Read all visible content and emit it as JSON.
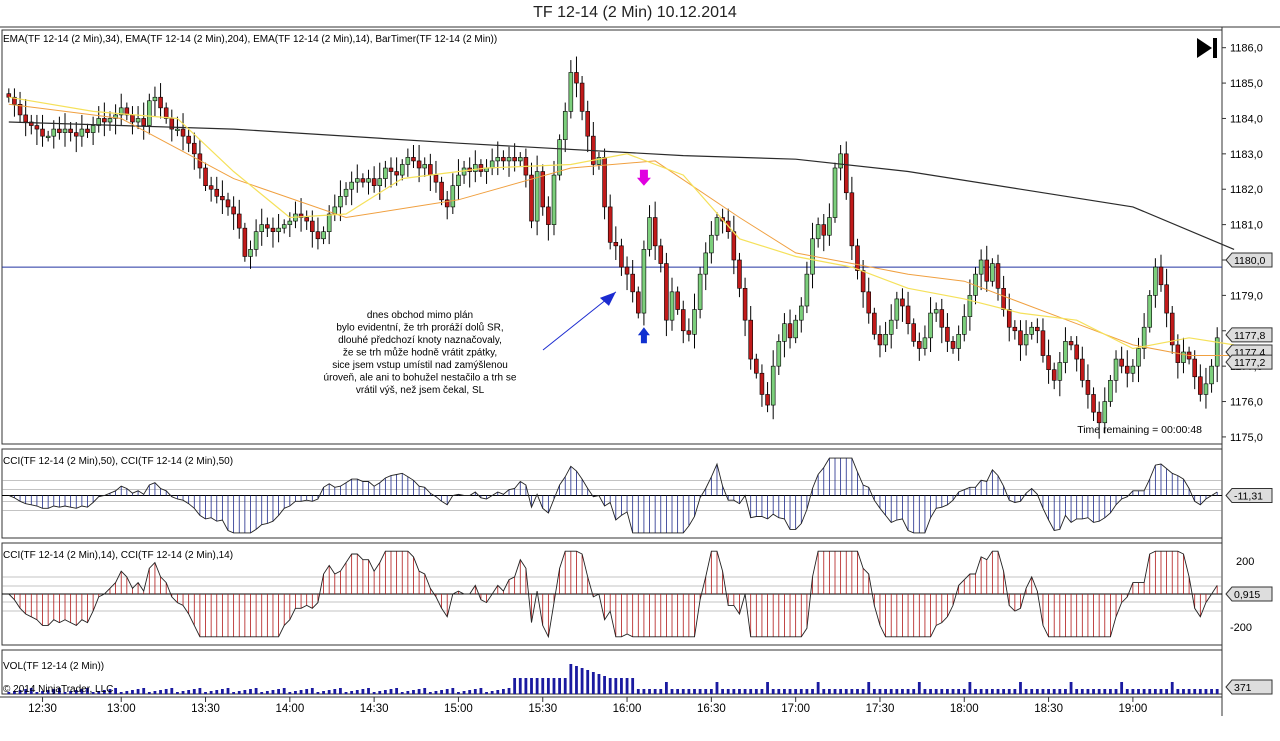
{
  "title": "TF 12-14 (2 Min)  10.12.2014",
  "colors": {
    "up": "#7ccf7c",
    "down": "#c11a1a",
    "ema34": "#f0a040",
    "ema204": "#2b2b2b",
    "ema14": "#f5e15a",
    "cci50": "#1e2a8a",
    "cci14": "#b01818",
    "vol": "#1a1aa0",
    "refline": "#2233a0"
  },
  "icons": {
    "play": "skip-forward-icon"
  },
  "chart_data": [
    {
      "type": "candlestick",
      "title": "EMA(TF 12-14 (2 Min),34), EMA(TF 12-14 (2 Min),204), EMA(TF 12-14 (2 Min),14), BarTimer(TF 12-14 (2 Min))",
      "ylim": [
        1174.8,
        1186.5
      ],
      "yticks": [
        "1175,0",
        "1176,0",
        "1177,0",
        "1178,0",
        "1179,0",
        "1180,0",
        "1181,0",
        "1182,0",
        "1183,0",
        "1184,0",
        "1185,0",
        "1186,0"
      ],
      "price_labels": [
        "1180,0",
        "1177,8",
        "1177,4",
        "1177,2"
      ],
      "horizontal_line": 1179.8,
      "bar_timer": "Time remaining = 00:00:48",
      "annotation": [
        "dnes obchod mimo plán",
        "bylo evidentní, že trh proráží dolů SR,",
        "dlouhé předchozí knoty naznačovaly,",
        "že se trh může hodně vrátit zpátky,",
        "sice jsem vstup umístil nad zamýšlenou",
        "úroveň, ale ani to bohužel nestačilo a trh se",
        "vrátil výš, než jsem čekal, SL"
      ],
      "ema204": [
        [
          0,
          1183.9
        ],
        [
          40,
          1183.7
        ],
        [
          80,
          1183.3
        ],
        [
          120,
          1182.95
        ],
        [
          140,
          1182.85
        ],
        [
          160,
          1182.5
        ],
        [
          180,
          1182.0
        ],
        [
          200,
          1181.5
        ],
        [
          218,
          1180.3
        ]
      ],
      "ema34": [
        [
          0,
          1184.4
        ],
        [
          20,
          1184.0
        ],
        [
          40,
          1182.3
        ],
        [
          60,
          1181.2
        ],
        [
          80,
          1181.7
        ],
        [
          100,
          1182.6
        ],
        [
          115,
          1182.8
        ],
        [
          130,
          1181.2
        ],
        [
          140,
          1180.2
        ],
        [
          150,
          1179.9
        ],
        [
          160,
          1179.6
        ],
        [
          170,
          1179.4
        ],
        [
          180,
          1178.8
        ],
        [
          190,
          1178.2
        ],
        [
          200,
          1177.6
        ],
        [
          210,
          1177.3
        ],
        [
          218,
          1177.3
        ]
      ],
      "ema14": [
        [
          0,
          1184.6
        ],
        [
          15,
          1184.2
        ],
        [
          30,
          1184.0
        ],
        [
          40,
          1182.5
        ],
        [
          50,
          1181.2
        ],
        [
          60,
          1181.3
        ],
        [
          70,
          1182.3
        ],
        [
          85,
          1182.6
        ],
        [
          100,
          1182.7
        ],
        [
          110,
          1183.0
        ],
        [
          120,
          1182.4
        ],
        [
          130,
          1180.6
        ],
        [
          140,
          1180.1
        ],
        [
          150,
          1179.8
        ],
        [
          160,
          1179.2
        ],
        [
          170,
          1178.9
        ],
        [
          180,
          1178.5
        ],
        [
          190,
          1178.3
        ],
        [
          200,
          1177.5
        ],
        [
          210,
          1177.8
        ],
        [
          218,
          1177.6
        ]
      ],
      "signals": [
        {
          "bar": 113,
          "type": "short-arrow",
          "price": 1182.1
        },
        {
          "bar": 113,
          "type": "cover-arrow",
          "price": 1178.1
        }
      ]
    },
    {
      "type": "histogram",
      "title": "CCI(TF 12-14 (2 Min),50), CCI(TF 12-14 (2 Min),50)",
      "last_value": "-11,31"
    },
    {
      "type": "histogram",
      "title": "CCI(TF 12-14 (2 Min),14), CCI(TF 12-14 (2 Min),14)",
      "yticks": [
        "200",
        "-200"
      ],
      "last_value": "0,915"
    },
    {
      "type": "bar",
      "title": "VOL(TF 12-14 (2 Min))",
      "last_value": "371",
      "copyright": "© 2014 NinjaTrader, LLC"
    }
  ],
  "xaxis": {
    "ticks": [
      "12:30",
      "13:00",
      "13:30",
      "14:00",
      "14:30",
      "15:00",
      "15:30",
      "16:00",
      "16:30",
      "17:00",
      "17:30",
      "18:00",
      "18:30",
      "19:00"
    ],
    "tick_bars": [
      6,
      20,
      35,
      50,
      65,
      80,
      95,
      110,
      125,
      140,
      155,
      170,
      185,
      200
    ]
  },
  "close_path": [
    1184.6,
    1184.4,
    1184.1,
    1183.9,
    1183.8,
    1183.7,
    1183.5,
    1183.5,
    1183.7,
    1183.6,
    1183.7,
    1183.6,
    1183.5,
    1183.7,
    1183.6,
    1183.8,
    1184.0,
    1183.9,
    1184.0,
    1184.1,
    1184.3,
    1184.1,
    1183.9,
    1184.0,
    1183.8,
    1184.5,
    1184.6,
    1184.3,
    1184.0,
    1183.7,
    1183.7,
    1183.5,
    1183.3,
    1183.0,
    1182.6,
    1182.1,
    1182.0,
    1181.8,
    1181.7,
    1181.5,
    1181.3,
    1180.9,
    1180.1,
    1180.3,
    1180.8,
    1181.0,
    1180.9,
    1180.8,
    1180.9,
    1181.0,
    1181.1,
    1181.3,
    1181.2,
    1181.1,
    1180.8,
    1180.6,
    1180.8,
    1181.3,
    1181.5,
    1181.8,
    1182.0,
    1182.2,
    1182.3,
    1182.2,
    1182.3,
    1182.1,
    1182.3,
    1182.6,
    1182.5,
    1182.4,
    1182.7,
    1182.9,
    1182.8,
    1182.6,
    1182.7,
    1182.4,
    1182.2,
    1181.7,
    1181.5,
    1182.1,
    1182.4,
    1182.6,
    1182.5,
    1182.7,
    1182.5,
    1182.6,
    1182.8,
    1182.9,
    1182.8,
    1182.9,
    1182.8,
    1182.9,
    1182.4,
    1181.1,
    1182.5,
    1181.5,
    1181.0,
    1182.4,
    1183.4,
    1184.2,
    1185.3,
    1185.0,
    1184.2,
    1183.5,
    1182.7,
    1182.9,
    1181.5,
    1180.5,
    1180.4,
    1179.8,
    1179.6,
    1179.1,
    1178.5,
    1180.3,
    1181.2,
    1180.4,
    1179.9,
    1178.3,
    1179.1,
    1178.6,
    1178.0,
    1177.9,
    1178.6,
    1179.6,
    1180.2,
    1180.7,
    1181.2,
    1181.1,
    1180.8,
    1180.0,
    1179.2,
    1178.3,
    1177.2,
    1176.8,
    1176.2,
    1175.9,
    1177.0,
    1177.7,
    1178.2,
    1177.8,
    1178.3,
    1178.7,
    1179.6,
    1180.6,
    1181.0,
    1180.7,
    1181.2,
    1182.6,
    1183.0,
    1181.9,
    1180.4,
    1179.7,
    1179.1,
    1178.5,
    1177.9,
    1177.6,
    1177.9,
    1178.3,
    1178.9,
    1178.7,
    1178.2,
    1177.7,
    1177.5,
    1177.8,
    1178.5,
    1178.6,
    1178.1,
    1177.7,
    1177.5,
    1177.9,
    1178.4,
    1179.0,
    1179.6,
    1180.0,
    1179.4,
    1179.9,
    1179.2,
    1178.6,
    1178.1,
    1178.0,
    1177.6,
    1177.9,
    1178.1,
    1178.0,
    1177.3,
    1176.9,
    1176.6,
    1177.1,
    1177.7,
    1177.6,
    1177.2,
    1176.6,
    1176.2,
    1175.7,
    1175.4,
    1176.0,
    1176.6,
    1177.2,
    1177.0,
    1176.8,
    1177.0,
    1177.5,
    1178.1,
    1179.0,
    1179.8,
    1179.3,
    1178.5,
    1177.6,
    1177.1,
    1177.4,
    1177.2,
    1176.7,
    1176.2,
    1176.5,
    1177.0,
    1177.8
  ]
}
